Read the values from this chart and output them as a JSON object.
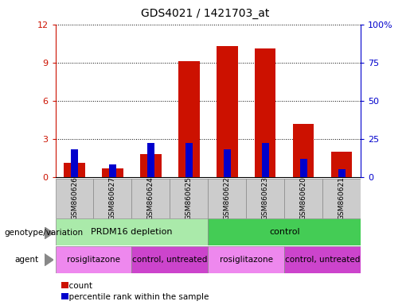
{
  "title": "GDS4021 / 1421703_at",
  "samples": [
    "GSM860626",
    "GSM860627",
    "GSM860624",
    "GSM860625",
    "GSM860622",
    "GSM860623",
    "GSM860620",
    "GSM860621"
  ],
  "count_values": [
    1.1,
    0.7,
    1.8,
    9.1,
    10.3,
    10.1,
    4.2,
    2.0
  ],
  "percentile_values": [
    18,
    8,
    22,
    22,
    18,
    22,
    12,
    5
  ],
  "count_color": "#cc1100",
  "percentile_color": "#0000cc",
  "ylim_left": [
    0,
    12
  ],
  "ylim_right": [
    0,
    100
  ],
  "yticks_left": [
    0,
    3,
    6,
    9,
    12
  ],
  "yticks_right": [
    0,
    25,
    50,
    75,
    100
  ],
  "ytick_labels_right": [
    "0",
    "25",
    "50",
    "75",
    "100%"
  ],
  "bar_width": 0.55,
  "genotype_groups": [
    {
      "label": "PRDM16 depletion",
      "start": 0,
      "end": 4,
      "color": "#aaeaaa"
    },
    {
      "label": "control",
      "start": 4,
      "end": 8,
      "color": "#44cc55"
    }
  ],
  "agent_groups": [
    {
      "label": "rosiglitazone",
      "start": 0,
      "end": 2,
      "color": "#ee88ee"
    },
    {
      "label": "control, untreated",
      "start": 2,
      "end": 4,
      "color": "#cc44cc"
    },
    {
      "label": "rosiglitazone",
      "start": 4,
      "end": 6,
      "color": "#ee88ee"
    },
    {
      "label": "control, untreated",
      "start": 6,
      "end": 8,
      "color": "#cc44cc"
    }
  ],
  "legend_count_label": "count",
  "legend_percentile_label": "percentile rank within the sample",
  "genotype_label": "genotype/variation",
  "agent_label": "agent",
  "title_fontsize": 10,
  "axis_color_left": "#cc1100",
  "axis_color_right": "#0000cc",
  "background_color": "#ffffff",
  "sample_box_color": "#cccccc",
  "sample_box_edge": "#888888"
}
